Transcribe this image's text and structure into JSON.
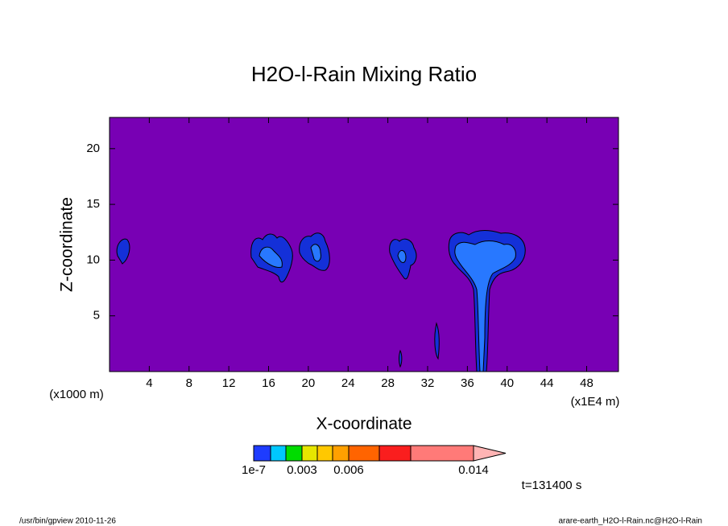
{
  "chart_data": {
    "type": "contour",
    "title": "H2O-l-Rain Mixing Ratio",
    "x_label": "X-coordinate",
    "y_label": "Z-coordinate",
    "x_unit_note": "(x1000 m)",
    "x_unit_note2": "(x1E4 m)",
    "time_note": "t=131400 s",
    "footer_left": "/usr/bin/gpview  2010-11-26",
    "footer_right": "arare-earth_H2O-l-Rain.nc@H2O-l-Rain",
    "xlim": [
      0,
      51.2
    ],
    "xticks": [
      4,
      8,
      12,
      16,
      20,
      24,
      28,
      32,
      36,
      40,
      44,
      48
    ],
    "ylim": [
      0,
      22.8
    ],
    "yticks": [
      5,
      10,
      15,
      20
    ],
    "colorbar": {
      "colors": [
        "#1e3cff",
        "#00c8ff",
        "#00dc00",
        "#e6e600",
        "#ffc800",
        "#ffa000",
        "#ff6400",
        "#fa1e1e",
        "#ff7a78",
        "#ffb4b4"
      ],
      "labels": [
        {
          "value": 1e-07,
          "label": "1e-7"
        },
        0.003,
        0.006,
        0.014
      ]
    }
  }
}
